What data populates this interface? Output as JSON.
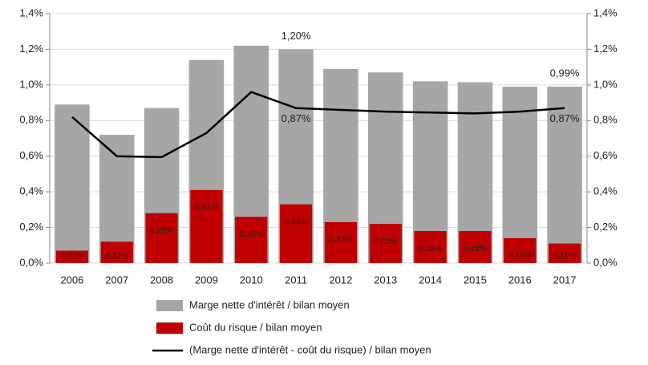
{
  "chart_data": {
    "type": "bar",
    "categories": [
      "2006",
      "2007",
      "2008",
      "2009",
      "2010",
      "2011",
      "2012",
      "2013",
      "2014",
      "2015",
      "2016",
      "2017"
    ],
    "series": [
      {
        "name": "Marge nette d'intérêt / bilan moyen",
        "type": "bar",
        "color": "#a6a6a6",
        "values": [
          0.89,
          0.72,
          0.87,
          1.14,
          1.22,
          1.2,
          1.09,
          1.07,
          1.02,
          1.015,
          0.99,
          0.99
        ],
        "value_labels": [
          null,
          null,
          null,
          null,
          null,
          "1,20%",
          null,
          null,
          null,
          null,
          null,
          "0,99%"
        ]
      },
      {
        "name": "Coût du risque / bilan moyen",
        "type": "bar",
        "color": "#c00000",
        "values": [
          0.07,
          0.12,
          0.28,
          0.41,
          0.26,
          0.33,
          0.23,
          0.22,
          0.18,
          0.18,
          0.14,
          0.11
        ],
        "value_labels": [
          "0,07%",
          "0,12%",
          "0,28%",
          "0,41%",
          "0,26%",
          "0,33%",
          "0,23%",
          "0,22%",
          "0,18%",
          "0,18%",
          "0,14%",
          "0,11%"
        ]
      },
      {
        "name": "(Marge nette d'intérêt - coût du risque) / bilan moyen",
        "type": "line",
        "color": "#000000",
        "values": [
          0.82,
          0.6,
          0.595,
          0.73,
          0.96,
          0.87,
          0.86,
          0.85,
          0.845,
          0.84,
          0.85,
          0.87
        ],
        "value_labels": [
          null,
          null,
          null,
          null,
          null,
          "0,87%",
          null,
          null,
          null,
          null,
          null,
          "0,87%"
        ]
      }
    ],
    "ylim": [
      0,
      1.4
    ],
    "yticks": [
      {
        "value": 0,
        "label": "0,0%"
      },
      {
        "value": 0.2,
        "label": "0,2%"
      },
      {
        "value": 0.4,
        "label": "0,4%"
      },
      {
        "value": 0.6,
        "label": "0,6%"
      },
      {
        "value": 0.8,
        "label": "0,8%"
      },
      {
        "value": 1.0,
        "label": "1,0%"
      },
      {
        "value": 1.2,
        "label": "1,2%"
      },
      {
        "value": 1.4,
        "label": "1,4%"
      }
    ],
    "y2lim": [
      0,
      1.4
    ],
    "y2ticks": [
      {
        "value": 0,
        "label": "0,0%"
      },
      {
        "value": 0.2,
        "label": "0,2%"
      },
      {
        "value": 0.4,
        "label": "0,4%"
      },
      {
        "value": 0.6,
        "label": "0,6%"
      },
      {
        "value": 0.8,
        "label": "0,8%"
      },
      {
        "value": 1.0,
        "label": "1,0%"
      },
      {
        "value": 1.2,
        "label": "1,2%"
      },
      {
        "value": 1.4,
        "label": "1,4%"
      }
    ],
    "grid": true,
    "legend": "bottom"
  }
}
